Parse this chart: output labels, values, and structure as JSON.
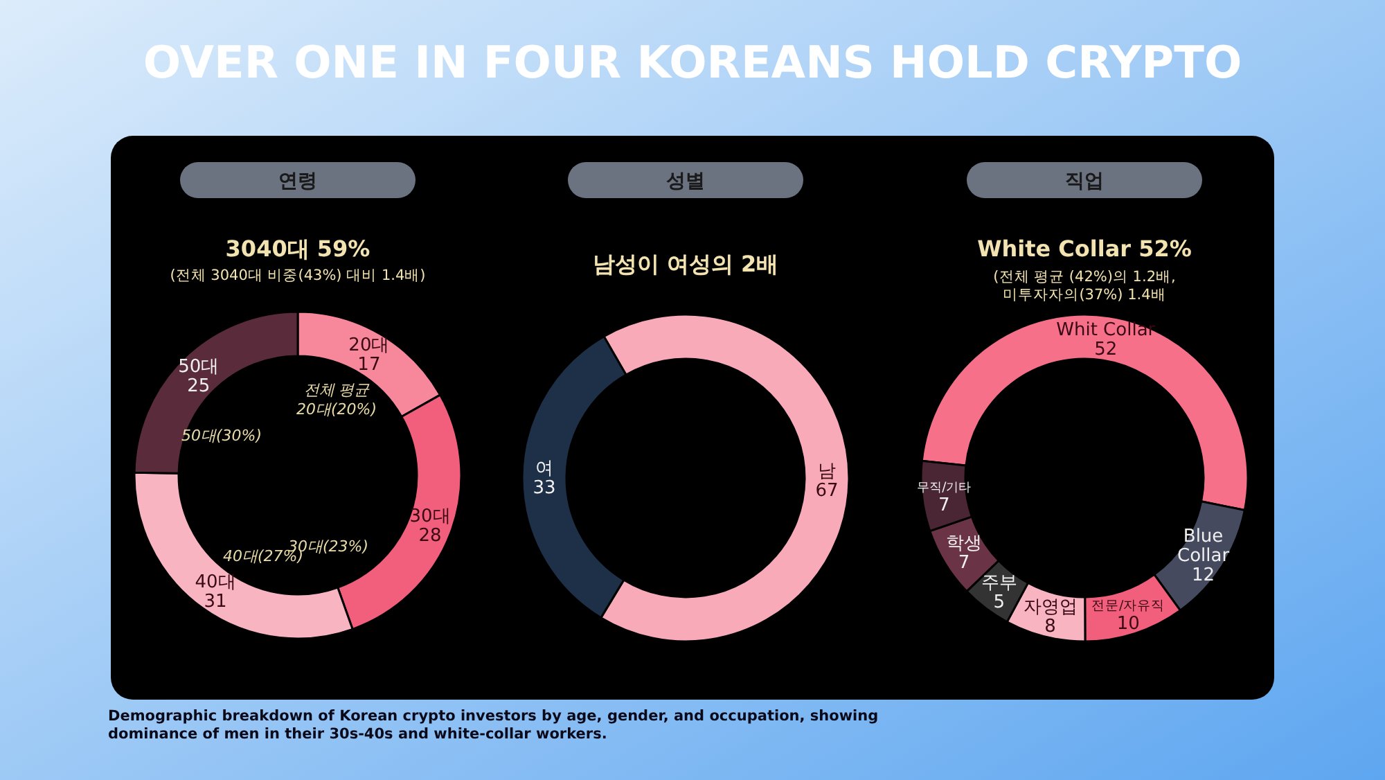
{
  "chart_data": [
    {
      "type": "donut",
      "title": "연령",
      "subtitle": "3040대 59%",
      "annotations": [
        "OVER ONE IN FOUR KOREANS HOLD CRYPTO",
        "(전체 3040대 비중(43%) 대비 1.4배)",
        "전체 평균 20대(20%)",
        "30대(23%)",
        "40대(27%)",
        "50대(30%)",
        "Demographic breakdown of Korean crypto investors by age, gender, and occupation, showing dominance of men in their 30s-40s and white-collar workers."
      ],
      "categories": [
        "20대",
        "30대",
        "40대",
        "50대"
      ],
      "values": [
        17,
        28,
        31,
        25
      ],
      "colors": [
        "#f7879a",
        "#f25f7c",
        "#f9b4c2",
        "#5a2b3b"
      ],
      "data_labels": true
    },
    {
      "type": "donut",
      "title": "성별",
      "subtitle": "남성이 여성의 2배",
      "categories": [
        "남",
        "여"
      ],
      "values": [
        67,
        33
      ],
      "colors": [
        "#f9aab8",
        "#1e3048"
      ],
      "data_labels": true
    },
    {
      "type": "donut",
      "title": "직업",
      "subtitle": "White Collar 52%",
      "annotations": [
        "(전체 평균 (42%)의 1.2배, 미투자자의(37%) 1.4배"
      ],
      "categories": [
        "Whit Collar",
        "Blue Collar",
        "전문/자유직",
        "자영업",
        "주부",
        "학생",
        "무직/기타"
      ],
      "values": [
        52,
        12,
        10,
        8,
        5,
        7,
        7
      ],
      "colors": [
        "#f7708a",
        "#454a5e",
        "#f25f7c",
        "#f9b4c2",
        "#333333",
        "#6a3346",
        "#4a2533"
      ],
      "data_labels": true
    }
  ]
}
